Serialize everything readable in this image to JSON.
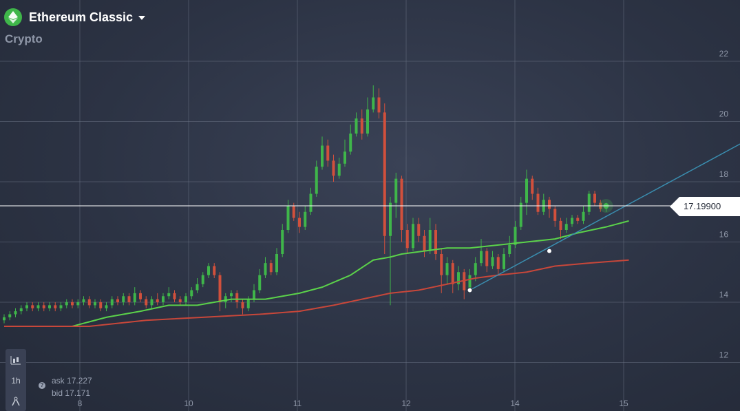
{
  "header": {
    "asset_name": "Ethereum Classic",
    "category": "Crypto",
    "icon": "ethereum-classic-icon"
  },
  "timeframe": "1h",
  "quote": {
    "ask_label": "ask",
    "ask": "17.227",
    "bid_label": "bid",
    "bid": "17.171"
  },
  "current_price_label": "17.19900",
  "colors": {
    "bull": "#3fb64a",
    "bear": "#d1503c",
    "ma_fast": "#5bd24a",
    "ma_slow": "#c8473a",
    "trendline": "#3a8eb0",
    "price_line": "#ffffff"
  },
  "chart_data": {
    "type": "candlestick",
    "x_tick_labels": [
      "8",
      "10",
      "11",
      "12",
      "14",
      "15"
    ],
    "y_tick_labels": [
      "12",
      "14",
      "16",
      "18",
      "20",
      "22"
    ],
    "ylim": [
      11.5,
      23.0
    ],
    "current_price": 17.199,
    "series": [
      {
        "type": "line",
        "color": "ma_fast",
        "points": [
          [
            0.0,
            13.2
          ],
          [
            1.2,
            13.2
          ],
          [
            1.8,
            13.5
          ],
          [
            2.4,
            13.7
          ],
          [
            2.9,
            13.9
          ],
          [
            3.4,
            13.9
          ],
          [
            4.0,
            14.1
          ],
          [
            4.6,
            14.1
          ],
          [
            5.2,
            14.3
          ],
          [
            5.6,
            14.5
          ],
          [
            6.1,
            14.9
          ],
          [
            6.5,
            15.4
          ],
          [
            6.8,
            15.5
          ],
          [
            7.0,
            15.6
          ],
          [
            7.4,
            15.7
          ],
          [
            7.8,
            15.8
          ],
          [
            8.2,
            15.8
          ],
          [
            8.7,
            15.9
          ],
          [
            9.2,
            16.0
          ],
          [
            9.7,
            16.1
          ],
          [
            10.1,
            16.3
          ],
          [
            10.6,
            16.5
          ],
          [
            11.0,
            16.7
          ]
        ]
      },
      {
        "type": "line",
        "color": "ma_slow",
        "points": [
          [
            0.0,
            13.2
          ],
          [
            1.5,
            13.2
          ],
          [
            2.5,
            13.4
          ],
          [
            3.5,
            13.5
          ],
          [
            4.5,
            13.6
          ],
          [
            5.2,
            13.7
          ],
          [
            5.8,
            13.9
          ],
          [
            6.3,
            14.1
          ],
          [
            6.8,
            14.3
          ],
          [
            7.3,
            14.4
          ],
          [
            7.8,
            14.6
          ],
          [
            8.3,
            14.8
          ],
          [
            8.7,
            14.9
          ],
          [
            9.2,
            15.0
          ],
          [
            9.7,
            15.2
          ],
          [
            10.3,
            15.3
          ],
          [
            11.0,
            15.4
          ]
        ]
      },
      {
        "type": "trendline",
        "points": [
          [
            8.2,
            14.4
          ],
          [
            13.2,
            19.5
          ]
        ],
        "markers": [
          [
            8.2,
            14.4
          ],
          [
            9.6,
            15.7
          ]
        ]
      }
    ],
    "candles": [
      [
        0.0,
        13.4,
        13.5,
        13.3,
        13.6
      ],
      [
        0.1,
        13.5,
        13.6,
        13.4,
        13.7
      ],
      [
        0.2,
        13.6,
        13.7,
        13.5,
        13.8
      ],
      [
        0.3,
        13.7,
        13.8,
        13.6,
        13.9
      ],
      [
        0.4,
        13.8,
        13.9,
        13.7,
        14.0
      ],
      [
        0.5,
        13.9,
        13.8,
        13.7,
        14.0
      ],
      [
        0.6,
        13.8,
        13.9,
        13.7,
        14.0
      ],
      [
        0.7,
        13.9,
        13.8,
        13.7,
        14.0
      ],
      [
        0.8,
        13.8,
        13.9,
        13.7,
        14.0
      ],
      [
        0.9,
        13.9,
        13.8,
        13.7,
        14.0
      ],
      [
        1.0,
        13.8,
        13.9,
        13.7,
        14.0
      ],
      [
        1.1,
        13.9,
        14.0,
        13.8,
        14.1
      ],
      [
        1.2,
        14.0,
        13.9,
        13.8,
        14.1
      ],
      [
        1.3,
        13.9,
        14.0,
        13.8,
        14.1
      ],
      [
        1.4,
        14.0,
        14.1,
        13.9,
        14.2
      ],
      [
        1.5,
        14.1,
        13.9,
        13.8,
        14.2
      ],
      [
        1.6,
        13.9,
        14.0,
        13.8,
        14.1
      ],
      [
        1.7,
        14.0,
        13.8,
        13.7,
        14.1
      ],
      [
        1.8,
        13.8,
        13.9,
        13.7,
        14.0
      ],
      [
        1.9,
        13.9,
        14.1,
        13.8,
        14.2
      ],
      [
        2.0,
        14.1,
        14.0,
        13.9,
        14.2
      ],
      [
        2.1,
        14.0,
        14.2,
        13.9,
        14.3
      ],
      [
        2.2,
        14.2,
        14.0,
        13.9,
        14.3
      ],
      [
        2.3,
        14.0,
        14.3,
        13.9,
        14.5
      ],
      [
        2.4,
        14.3,
        14.1,
        14.0,
        14.4
      ],
      [
        2.5,
        14.1,
        13.9,
        13.8,
        14.2
      ],
      [
        2.6,
        13.9,
        14.1,
        13.8,
        14.2
      ],
      [
        2.7,
        14.1,
        14.0,
        13.9,
        14.3
      ],
      [
        2.8,
        14.0,
        14.2,
        13.9,
        14.3
      ],
      [
        2.9,
        14.2,
        14.3,
        14.1,
        14.5
      ],
      [
        3.0,
        14.3,
        14.1,
        14.0,
        14.4
      ],
      [
        3.1,
        14.1,
        14.0,
        13.9,
        14.2
      ],
      [
        3.2,
        14.0,
        14.2,
        13.9,
        14.3
      ],
      [
        3.3,
        14.2,
        14.4,
        14.1,
        14.5
      ],
      [
        3.4,
        14.4,
        14.6,
        14.3,
        14.8
      ],
      [
        3.5,
        14.6,
        14.9,
        14.5,
        15.0
      ],
      [
        3.6,
        14.9,
        15.2,
        14.8,
        15.3
      ],
      [
        3.7,
        15.2,
        14.9,
        14.8,
        15.3
      ],
      [
        3.8,
        14.9,
        14.0,
        13.7,
        15.0
      ],
      [
        3.9,
        14.0,
        14.2,
        13.8,
        14.3
      ],
      [
        4.0,
        14.2,
        14.3,
        14.0,
        14.4
      ],
      [
        4.1,
        14.3,
        14.0,
        13.8,
        14.4
      ],
      [
        4.2,
        14.0,
        13.8,
        13.6,
        14.1
      ],
      [
        4.3,
        13.8,
        14.1,
        13.7,
        14.2
      ],
      [
        4.4,
        14.1,
        14.4,
        14.0,
        14.6
      ],
      [
        4.5,
        14.4,
        14.9,
        14.3,
        15.1
      ],
      [
        4.6,
        14.9,
        15.3,
        14.8,
        15.5
      ],
      [
        4.7,
        15.3,
        15.0,
        14.9,
        15.4
      ],
      [
        4.8,
        15.0,
        15.6,
        14.9,
        15.8
      ],
      [
        4.9,
        15.6,
        16.4,
        15.5,
        16.6
      ],
      [
        5.0,
        16.4,
        17.2,
        16.3,
        17.4
      ],
      [
        5.1,
        17.2,
        16.8,
        16.7,
        17.3
      ],
      [
        5.2,
        16.8,
        16.5,
        16.3,
        17.0
      ],
      [
        5.3,
        16.5,
        17.0,
        16.4,
        17.2
      ],
      [
        5.4,
        17.0,
        17.6,
        16.9,
        17.8
      ],
      [
        5.5,
        17.6,
        18.5,
        17.5,
        18.7
      ],
      [
        5.6,
        18.5,
        19.2,
        18.4,
        19.5
      ],
      [
        5.7,
        19.2,
        18.7,
        18.5,
        19.4
      ],
      [
        5.8,
        18.7,
        18.2,
        18.0,
        18.9
      ],
      [
        5.9,
        18.2,
        18.6,
        18.1,
        18.8
      ],
      [
        6.0,
        18.6,
        19.0,
        18.5,
        19.4
      ],
      [
        6.1,
        19.0,
        19.6,
        18.9,
        19.9
      ],
      [
        6.2,
        19.6,
        20.1,
        19.5,
        20.3
      ],
      [
        6.3,
        20.1,
        19.6,
        19.4,
        20.4
      ],
      [
        6.4,
        19.6,
        20.4,
        19.5,
        20.8
      ],
      [
        6.5,
        20.4,
        20.8,
        20.3,
        21.2
      ],
      [
        6.6,
        20.8,
        20.3,
        20.1,
        21.1
      ],
      [
        6.7,
        20.3,
        16.2,
        15.6,
        20.6
      ],
      [
        6.8,
        16.2,
        17.3,
        13.9,
        17.5
      ],
      [
        6.9,
        17.3,
        18.1,
        16.8,
        18.3
      ],
      [
        7.0,
        18.1,
        16.4,
        16.0,
        18.2
      ],
      [
        7.1,
        16.4,
        15.8,
        15.6,
        16.6
      ],
      [
        7.2,
        15.8,
        16.6,
        15.7,
        16.8
      ],
      [
        7.3,
        16.6,
        16.2,
        16.0,
        16.8
      ],
      [
        7.4,
        16.2,
        15.7,
        15.5,
        16.4
      ],
      [
        7.5,
        15.7,
        16.4,
        15.6,
        16.8
      ],
      [
        7.6,
        16.4,
        15.6,
        15.4,
        16.6
      ],
      [
        7.7,
        15.6,
        14.9,
        14.3,
        15.8
      ],
      [
        7.8,
        14.9,
        15.3,
        14.6,
        15.5
      ],
      [
        7.9,
        15.3,
        14.6,
        14.3,
        15.4
      ],
      [
        8.0,
        14.6,
        15.0,
        14.4,
        15.2
      ],
      [
        8.1,
        15.0,
        14.4,
        14.1,
        15.1
      ],
      [
        8.2,
        14.4,
        14.9,
        14.3,
        15.1
      ],
      [
        8.3,
        14.9,
        15.3,
        14.7,
        15.5
      ],
      [
        8.4,
        15.3,
        15.7,
        15.2,
        16.1
      ],
      [
        8.5,
        15.7,
        15.2,
        15.0,
        15.8
      ],
      [
        8.6,
        15.2,
        15.5,
        15.1,
        15.7
      ],
      [
        8.7,
        15.5,
        15.1,
        14.9,
        15.6
      ],
      [
        8.8,
        15.1,
        15.6,
        15.0,
        15.8
      ],
      [
        8.9,
        15.6,
        15.9,
        15.5,
        16.2
      ],
      [
        9.0,
        15.9,
        16.5,
        15.8,
        16.7
      ],
      [
        9.1,
        16.5,
        17.3,
        16.4,
        17.5
      ],
      [
        9.2,
        17.3,
        18.1,
        16.9,
        18.4
      ],
      [
        9.3,
        18.1,
        17.6,
        17.4,
        18.2
      ],
      [
        9.4,
        17.6,
        17.0,
        16.9,
        17.8
      ],
      [
        9.5,
        17.0,
        17.4,
        16.9,
        17.6
      ],
      [
        9.6,
        17.4,
        17.1,
        16.8,
        17.5
      ],
      [
        9.7,
        17.1,
        16.7,
        16.5,
        17.2
      ],
      [
        9.8,
        16.7,
        16.4,
        16.1,
        16.8
      ],
      [
        9.9,
        16.4,
        16.6,
        16.3,
        16.8
      ],
      [
        10.0,
        16.6,
        16.8,
        16.5,
        16.9
      ],
      [
        10.1,
        16.8,
        16.7,
        16.6,
        16.9
      ],
      [
        10.2,
        16.7,
        17.0,
        16.6,
        17.2
      ],
      [
        10.3,
        17.0,
        17.6,
        16.9,
        17.7
      ],
      [
        10.4,
        17.6,
        17.3,
        17.2,
        17.7
      ],
      [
        10.5,
        17.3,
        17.1,
        17.0,
        17.4
      ],
      [
        10.6,
        17.1,
        17.2,
        17.0,
        17.3
      ]
    ]
  }
}
